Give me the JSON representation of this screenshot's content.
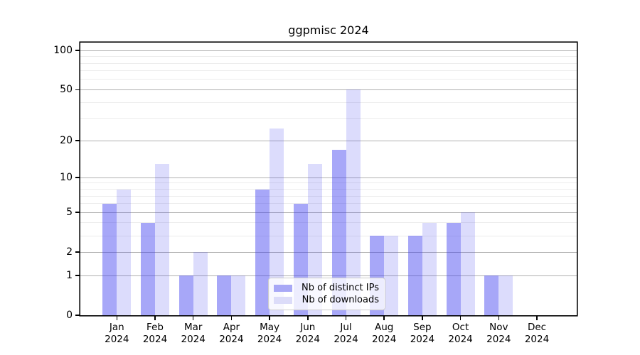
{
  "title": "ggpmisc 2024",
  "chart_data": {
    "type": "bar",
    "title": "ggpmisc 2024",
    "categories": [
      "Jan",
      "Feb",
      "Mar",
      "Apr",
      "May",
      "Jun",
      "Jul",
      "Aug",
      "Sep",
      "Oct",
      "Nov",
      "Dec"
    ],
    "year_label": "2024",
    "series": [
      {
        "name": "Nb of distinct IPs",
        "color": "#a8a8f6",
        "fill_rgba": "rgba(60,60,240,0.45)",
        "values": [
          6,
          4,
          1,
          1,
          8,
          6,
          17,
          3,
          3,
          4,
          1,
          0
        ]
      },
      {
        "name": "Nb of downloads",
        "color": "#dcdcf9",
        "fill_rgba": "rgba(60,60,240,0.18)",
        "values": [
          8,
          13,
          2,
          1,
          25,
          13,
          50,
          3,
          4,
          5,
          1,
          0
        ]
      }
    ],
    "scale": "log1p",
    "ylim": [
      0,
      114
    ],
    "yticks_major": [
      100,
      50,
      20,
      10,
      5,
      2,
      1,
      0
    ],
    "yticklabels": [
      "100",
      "50",
      "20",
      "10",
      "5",
      "2",
      "1",
      "0"
    ],
    "yticks_minor": [
      90,
      80,
      70,
      60,
      40,
      30,
      9,
      8,
      7,
      6,
      4,
      3
    ],
    "grid": true,
    "legend_position": "lower-center-inside",
    "colors": {
      "grid_major": "#b0b0b0",
      "grid_minor": "#ececec",
      "axis": "#000000",
      "background": "#ffffff"
    }
  }
}
